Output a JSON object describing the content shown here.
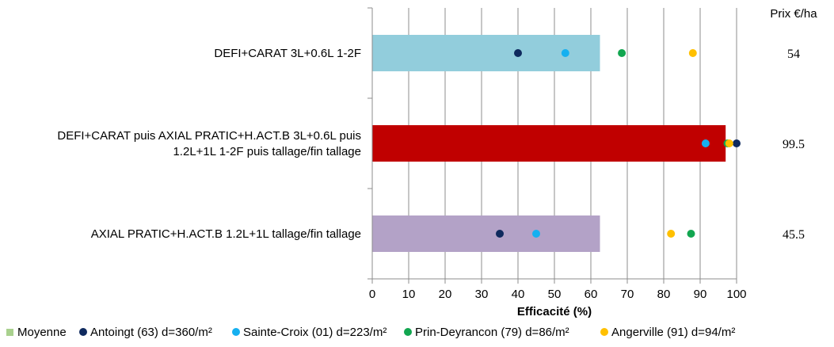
{
  "chart_data": {
    "type": "bar",
    "orientation": "horizontal",
    "xlabel": "Efficacité (%)",
    "xlim": [
      0,
      100
    ],
    "xticks": [
      0,
      10,
      20,
      30,
      40,
      50,
      60,
      70,
      80,
      90,
      100
    ],
    "grid": "vertical",
    "legend_position": "bottom",
    "price_header": "Prix €/ha",
    "categories": [
      {
        "label_lines": [
          "DEFI+CARAT 3L+0.6L 1-2F"
        ],
        "moyenne": 62.5,
        "bar_color": "#92cddc",
        "price": "54",
        "points": {
          "antoingt": 40,
          "sainte_croix": 53,
          "prin_deyrancon": 68.5,
          "angerville": 88
        }
      },
      {
        "label_lines": [
          "DEFI+CARAT puis AXIAL PRATIC+H.ACT.B 3L+0.6L puis",
          "1.2L+1L 1-2F puis tallage/fin tallage"
        ],
        "moyenne": 97,
        "bar_color": "#c00000",
        "price": "99.5",
        "points": {
          "antoingt": 100,
          "sainte_croix": 91.5,
          "prin_deyrancon": 97.5,
          "angerville": 98
        }
      },
      {
        "label_lines": [
          "AXIAL PRATIC+H.ACT.B 1.2L+1L  tallage/fin tallage"
        ],
        "moyenne": 62.5,
        "bar_color": "#b3a2c7",
        "price": "45.5",
        "points": {
          "antoingt": 35,
          "sainte_croix": 45,
          "prin_deyrancon": 87.5,
          "angerville": 82
        }
      }
    ],
    "series": [
      {
        "key": "moyenne",
        "name": "Moyenne",
        "color": "#a9d18e",
        "marker": "square"
      },
      {
        "key": "antoingt",
        "name": "Antoingt (63) d=360/m²",
        "color": "#0f2a5e",
        "marker": "circle"
      },
      {
        "key": "sainte_croix",
        "name": "Sainte-Croix (01) d=223/m²",
        "color": "#16b0f0",
        "marker": "circle"
      },
      {
        "key": "prin_deyrancon",
        "name": "Prin-Deyrancon (79) d=86/m²",
        "color": "#12a650",
        "marker": "circle"
      },
      {
        "key": "angerville",
        "name": "Angerville (91) d=94/m²",
        "color": "#ffc000",
        "marker": "circle"
      }
    ]
  }
}
